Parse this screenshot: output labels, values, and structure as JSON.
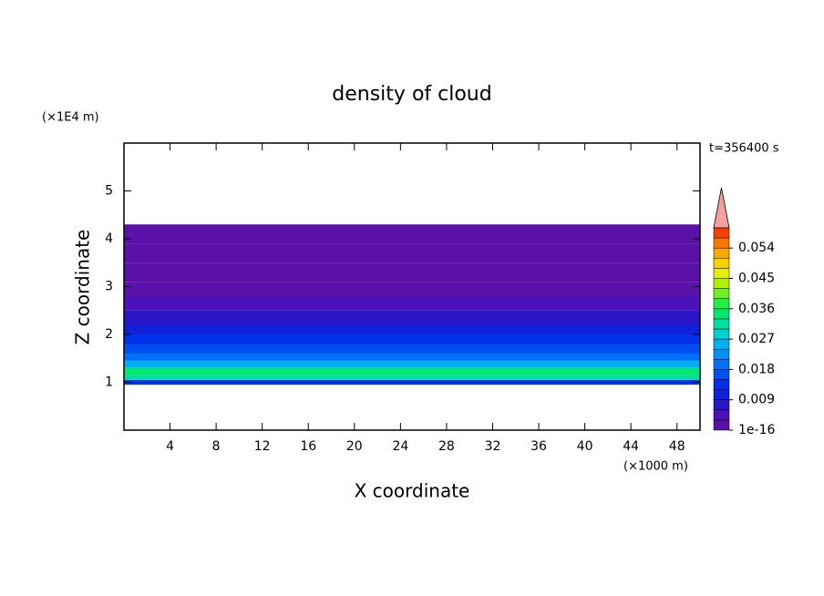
{
  "chart_data": {
    "type": "contour",
    "title": "density of cloud",
    "x_label": "X coordinate",
    "y_label": "Z coordinate",
    "x_unit": "(×1000 m)",
    "y_unit": "(×1E4 m)",
    "time_label": "t=356400 s",
    "xlim": [
      0,
      50
    ],
    "xticks": [
      4,
      8,
      12,
      16,
      20,
      24,
      28,
      32,
      36,
      40,
      44,
      48
    ],
    "ylim": [
      0,
      6
    ],
    "yticks": [
      1,
      2,
      3,
      4,
      5
    ],
    "field": {
      "z_edges": [
        0.95,
        1.05,
        1.15,
        1.3,
        1.45,
        1.6,
        1.8,
        2.0,
        2.2,
        2.5,
        2.8,
        3.1,
        3.5,
        3.9,
        4.3
      ],
      "values": [
        0.012,
        0.03,
        0.033,
        0.024,
        0.018,
        0.015,
        0.012,
        0.009,
        0.006,
        0.004,
        0.002,
        0.001,
        0.0005,
        0.0002
      ]
    },
    "colorbar": {
      "clim": [
        0,
        0.06
      ],
      "ticks": [
        1e-16,
        0.009,
        0.018,
        0.027,
        0.036,
        0.045,
        0.054
      ],
      "colors": [
        "#5b10a8",
        "#4a12b8",
        "#2a14c8",
        "#1020d8",
        "#0030e8",
        "#0050f0",
        "#0070f8",
        "#0090f8",
        "#00b0f0",
        "#00d0d0",
        "#00e0a0",
        "#00e870",
        "#20f040",
        "#70f020",
        "#b0f000",
        "#e8f000",
        "#f8d000",
        "#f8a800",
        "#f87800",
        "#f84000"
      ],
      "extend_color": "#f4a0a0"
    }
  }
}
